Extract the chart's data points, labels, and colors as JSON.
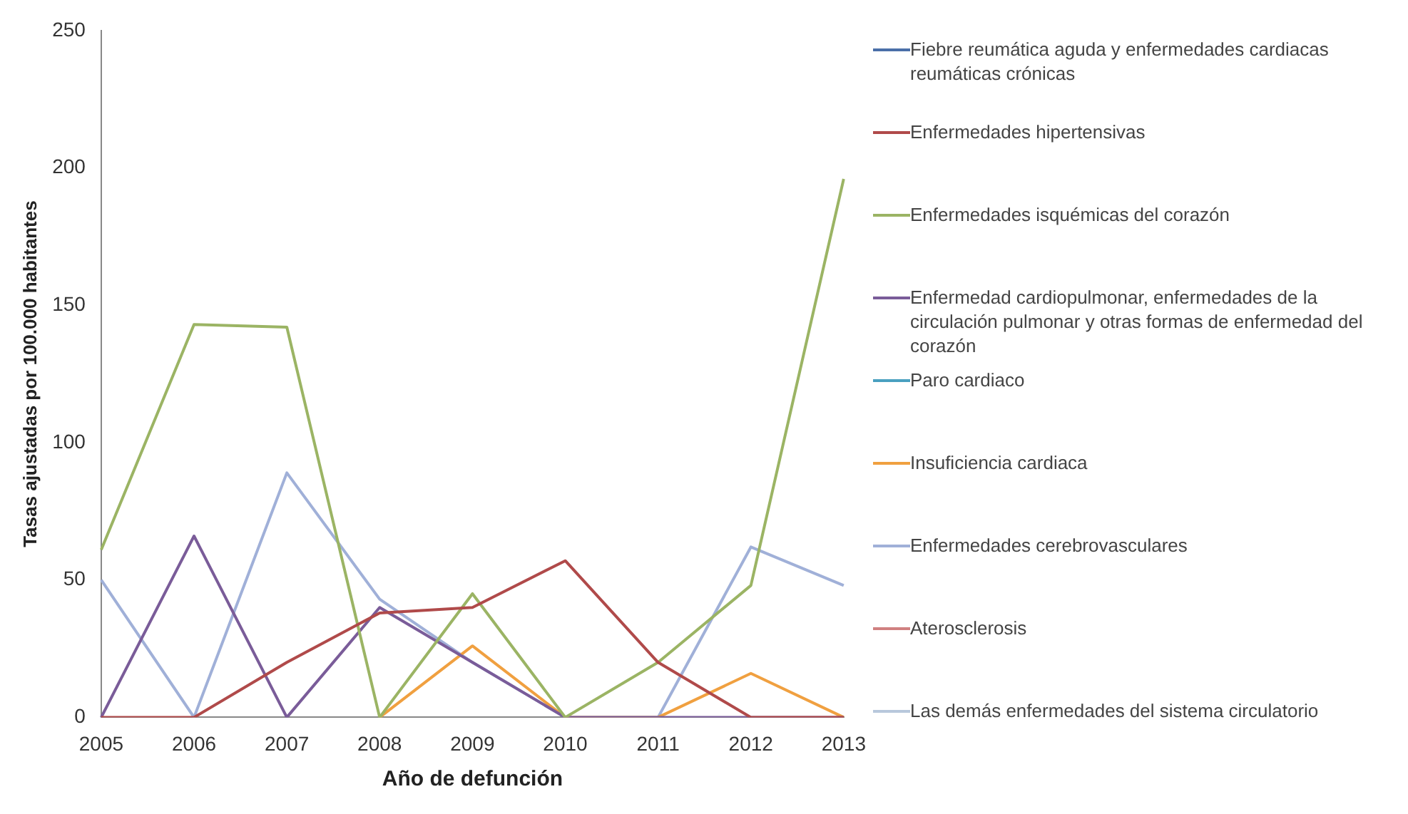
{
  "chart_data": {
    "type": "line",
    "xlabel": "Año de defunción",
    "ylabel": "Tasas ajustadas por 100.000 habitantes",
    "categories": [
      "2005",
      "2006",
      "2007",
      "2008",
      "2009",
      "2010",
      "2011",
      "2012",
      "2013"
    ],
    "ylim": [
      0,
      250
    ],
    "yticks": [
      0,
      50,
      100,
      150,
      200,
      250
    ],
    "grid": false,
    "legend": "right",
    "marker": "none",
    "series": [
      {
        "name": "Fiebre reumática aguda y enfermedades cardiacas reumáticas crónicas",
        "color": "#4a6fa8",
        "values": [
          null,
          null,
          null,
          null,
          null,
          null,
          null,
          null,
          null
        ]
      },
      {
        "name": "Enfermedades hipertensivas",
        "color": "#b04a4a",
        "values": [
          0,
          0,
          20,
          38,
          40,
          57,
          20,
          0,
          0
        ]
      },
      {
        "name": "Enfermedades isquémicas del corazón",
        "color": "#9bb464",
        "values": [
          61,
          143,
          142,
          0,
          45,
          0,
          20,
          48,
          196
        ]
      },
      {
        "name": "Enfermedad cardiopulmonar, enfermedades de la circulación pulmonar y otras formas de enfermedad del corazón",
        "color": "#7a5c99",
        "values": [
          0,
          66,
          0,
          40,
          20,
          0,
          0,
          0,
          0
        ]
      },
      {
        "name": "Paro cardiaco",
        "color": "#4aa0c0",
        "values": [
          null,
          null,
          null,
          null,
          null,
          null,
          null,
          null,
          null
        ]
      },
      {
        "name": "Insuficiencia cardiaca",
        "color": "#f0a040",
        "values": [
          null,
          null,
          null,
          0,
          26,
          0,
          0,
          16,
          0
        ]
      },
      {
        "name": "Enfermedades cerebrovasculares",
        "color": "#a0b0d8",
        "values": [
          50,
          0,
          89,
          43,
          20,
          0,
          0,
          62,
          48
        ]
      },
      {
        "name": "Aterosclerosis",
        "color": "#d08080",
        "values": [
          null,
          null,
          null,
          null,
          null,
          null,
          null,
          null,
          null
        ]
      },
      {
        "name": "Las demás enfermedades del sistema circulatorio",
        "color": "#b8c8dc",
        "values": [
          null,
          null,
          null,
          null,
          null,
          null,
          null,
          null,
          null
        ]
      }
    ]
  }
}
